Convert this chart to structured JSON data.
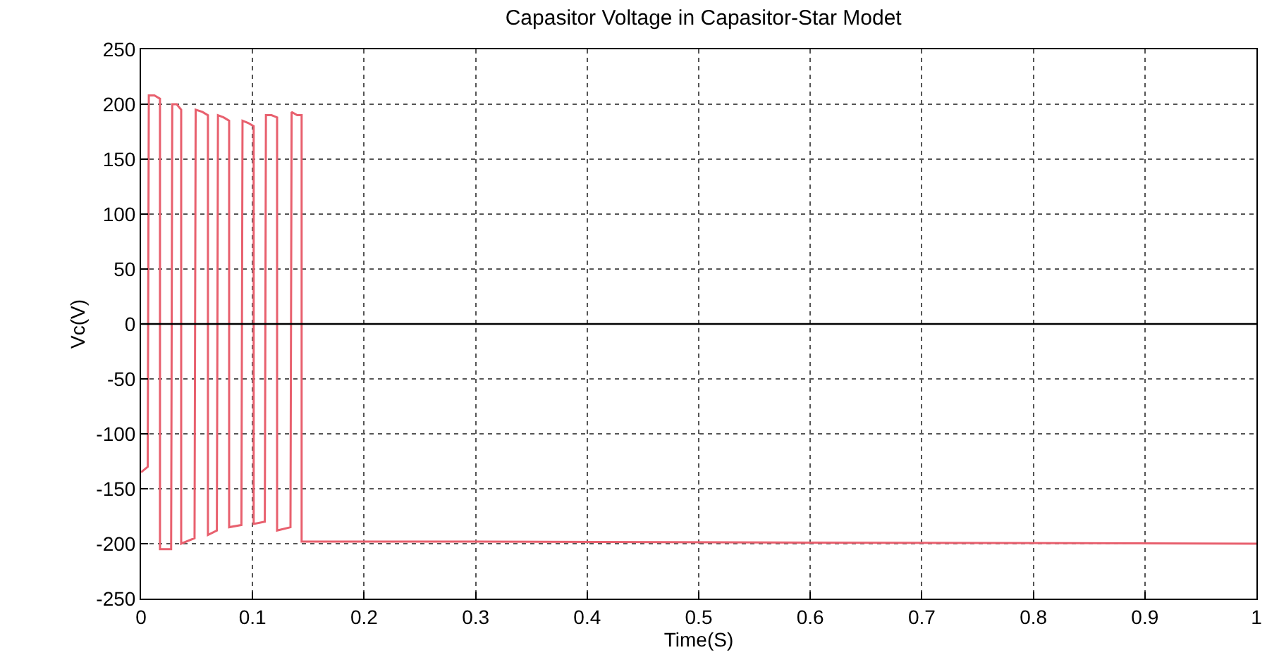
{
  "chart_data": {
    "type": "line",
    "title": "Capasitor Voltage in Capasitor-Star Modet",
    "xlabel": "Time(S)",
    "ylabel": "Vc(V)",
    "xlim": [
      0,
      1
    ],
    "xticks": [
      0,
      0.1,
      0.2,
      0.3,
      0.4,
      0.5,
      0.6,
      0.7,
      0.8,
      0.9,
      1
    ],
    "ylim": [
      -250,
      250
    ],
    "yticks": [
      -250,
      -200,
      -150,
      -100,
      -50,
      0,
      50,
      100,
      150,
      200,
      250
    ],
    "grid": true,
    "line_style": "solid",
    "ref_lines": [
      {
        "axis": "y",
        "value": 0,
        "color": "#000000",
        "line_style": "solid"
      }
    ],
    "series": [
      {
        "color": "#e8606e",
        "x": [
          0,
          0.006,
          0.007,
          0.012,
          0.017,
          0.017,
          0.027,
          0.028,
          0.032,
          0.036,
          0.036,
          0.048,
          0.049,
          0.055,
          0.06,
          0.06,
          0.068,
          0.069,
          0.074,
          0.079,
          0.079,
          0.09,
          0.091,
          0.096,
          0.101,
          0.101,
          0.111,
          0.112,
          0.117,
          0.122,
          0.122,
          0.134,
          0.135,
          0.14,
          0.144,
          0.144,
          0.3,
          0.6,
          1
        ],
        "values": [
          -135,
          -130,
          208,
          208,
          205,
          -205,
          -205,
          200,
          200,
          195,
          -200,
          -195,
          195,
          193,
          190,
          -192,
          -188,
          190,
          188,
          185,
          -185,
          -183,
          185,
          183,
          180,
          -182,
          -180,
          190,
          190,
          188,
          -188,
          -185,
          193,
          190,
          190,
          -198,
          -198,
          -199,
          -200
        ]
      }
    ]
  }
}
